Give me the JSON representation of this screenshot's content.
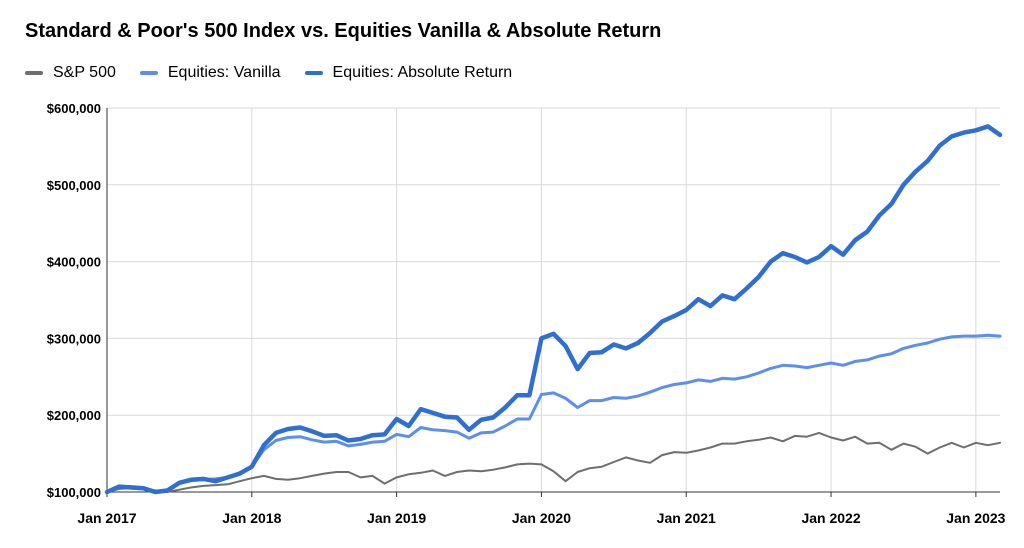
{
  "chart_data": {
    "type": "line",
    "title": "Standard & Poor's 500 Index vs. Equities Vanilla & Absolute Return",
    "xlabel": "",
    "ylabel": "",
    "ylim": [
      100000,
      600000
    ],
    "xlim": [
      "2017-01",
      "2023-03"
    ],
    "y_ticks": [
      "$100,000",
      "$200,000",
      "$300,000",
      "$400,000",
      "$500,000",
      "$600,000"
    ],
    "y_tick_values": [
      100000,
      200000,
      300000,
      400000,
      500000,
      600000
    ],
    "x_ticks": [
      "Jan 2017",
      "Jan 2018",
      "Jan 2019",
      "Jan 2020",
      "Jan 2021",
      "Jan 2022",
      "Jan 2023"
    ],
    "x_tick_values": [
      "2017-01",
      "2018-01",
      "2019-01",
      "2020-01",
      "2021-01",
      "2022-01",
      "2023-01"
    ],
    "grid": true,
    "legend_position": "top-left",
    "x": [
      "2017-01",
      "2017-02",
      "2017-03",
      "2017-04",
      "2017-05",
      "2017-06",
      "2017-07",
      "2017-08",
      "2017-09",
      "2017-10",
      "2017-11",
      "2017-12",
      "2018-01",
      "2018-02",
      "2018-03",
      "2018-04",
      "2018-05",
      "2018-06",
      "2018-07",
      "2018-08",
      "2018-09",
      "2018-10",
      "2018-11",
      "2018-12",
      "2019-01",
      "2019-02",
      "2019-03",
      "2019-04",
      "2019-05",
      "2019-06",
      "2019-07",
      "2019-08",
      "2019-09",
      "2019-10",
      "2019-11",
      "2019-12",
      "2020-01",
      "2020-02",
      "2020-03",
      "2020-04",
      "2020-05",
      "2020-06",
      "2020-07",
      "2020-08",
      "2020-09",
      "2020-10",
      "2020-11",
      "2020-12",
      "2021-01",
      "2021-02",
      "2021-03",
      "2021-04",
      "2021-05",
      "2021-06",
      "2021-07",
      "2021-08",
      "2021-09",
      "2021-10",
      "2021-11",
      "2021-12",
      "2022-01",
      "2022-02",
      "2022-03",
      "2022-04",
      "2022-05",
      "2022-06",
      "2022-07",
      "2022-08",
      "2022-09",
      "2022-10",
      "2022-11",
      "2022-12",
      "2023-01",
      "2023-02",
      "2023-03"
    ],
    "series": [
      {
        "name": "S&P 500",
        "color": "#6e6e6e",
        "width": 2,
        "values": [
          100000,
          104000,
          105000,
          104000,
          102000,
          100000,
          103000,
          106000,
          108000,
          109000,
          110000,
          114000,
          118000,
          121000,
          117000,
          116000,
          118000,
          121000,
          124000,
          126000,
          126000,
          119000,
          121000,
          111000,
          119000,
          123000,
          125000,
          128000,
          121000,
          126000,
          128000,
          127000,
          129000,
          132000,
          136000,
          137000,
          136000,
          127000,
          114000,
          126000,
          131000,
          133000,
          139000,
          145000,
          141000,
          138000,
          148000,
          152000,
          151000,
          154000,
          158000,
          163000,
          163000,
          166000,
          168000,
          171000,
          166000,
          173000,
          172000,
          177000,
          171000,
          167000,
          172000,
          163000,
          164000,
          155000,
          163000,
          159000,
          150000,
          158000,
          164000,
          158000,
          164000,
          161000,
          164000
        ]
      },
      {
        "name": "Equities: Vanilla",
        "color": "#5b8ef0",
        "width": 3,
        "values": [
          100000,
          106000,
          105000,
          104000,
          100000,
          102000,
          112000,
          115000,
          116000,
          117000,
          119000,
          125000,
          133000,
          155000,
          167000,
          171000,
          172000,
          168000,
          165000,
          166000,
          160000,
          162000,
          165000,
          166000,
          175000,
          172000,
          184000,
          181000,
          180000,
          178000,
          170000,
          177000,
          178000,
          186000,
          195000,
          195000,
          227000,
          229000,
          222000,
          210000,
          219000,
          219000,
          223000,
          222000,
          225000,
          230000,
          236000,
          240000,
          242000,
          246000,
          244000,
          248000,
          247000,
          250000,
          255000,
          261000,
          265000,
          264000,
          262000,
          265000,
          268000,
          265000,
          270000,
          272000,
          277000,
          280000,
          287000,
          291000,
          294000,
          299000,
          302000,
          303000,
          303000,
          304000,
          303000
        ]
      },
      {
        "name": "Equities: Absolute Return",
        "color": "#2f6fd0",
        "width": 4.5,
        "values": [
          100000,
          107000,
          106000,
          105000,
          100000,
          102000,
          112000,
          116000,
          117000,
          114000,
          119000,
          124000,
          133000,
          161000,
          177000,
          182000,
          184000,
          179000,
          173000,
          174000,
          167000,
          169000,
          174000,
          175000,
          195000,
          186000,
          208000,
          203000,
          198000,
          197000,
          181000,
          194000,
          197000,
          210000,
          226000,
          226000,
          300000,
          306000,
          290000,
          260000,
          281000,
          282000,
          292000,
          287000,
          294000,
          307000,
          322000,
          329000,
          337000,
          351000,
          342000,
          356000,
          351000,
          365000,
          380000,
          400000,
          411000,
          406000,
          399000,
          406000,
          420000,
          409000,
          428000,
          439000,
          460000,
          475000,
          500000,
          517000,
          531000,
          551000,
          563000,
          568000,
          571000,
          576000,
          565000
        ]
      }
    ]
  }
}
